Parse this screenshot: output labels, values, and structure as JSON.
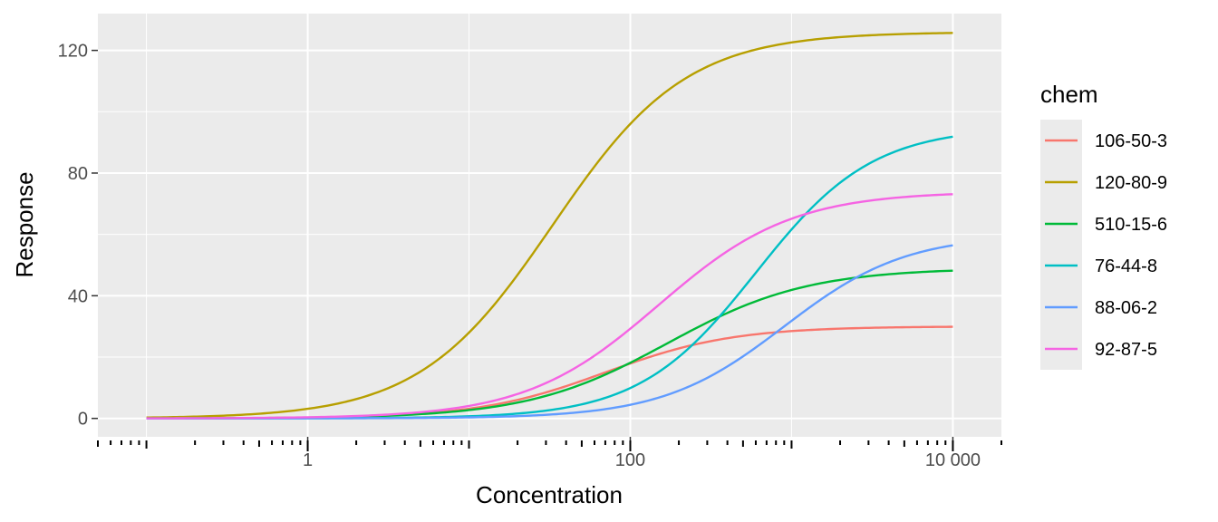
{
  "chart_data": {
    "type": "line",
    "xlabel": "Concentration",
    "ylabel": "Response",
    "x_scale": "log10",
    "xlim": [
      0.05,
      20000
    ],
    "ylim": [
      -6,
      132
    ],
    "x_ticks": [
      {
        "value": 1,
        "label": "1"
      },
      {
        "value": 100,
        "label": "100"
      },
      {
        "value": 10000,
        "label": "10 000"
      }
    ],
    "y_ticks": [
      {
        "value": 0,
        "label": "0"
      },
      {
        "value": 40,
        "label": "40"
      },
      {
        "value": 80,
        "label": "80"
      },
      {
        "value": 120,
        "label": "120"
      }
    ],
    "grid": true,
    "legend": {
      "title": "chem",
      "position": "right"
    },
    "series": [
      {
        "name": "106-50-3",
        "color": "#F8766D",
        "x_range": [
          0.1,
          10000
        ],
        "top": 30,
        "ac50": 70,
        "hill": 1.1
      },
      {
        "name": "120-80-9",
        "color": "#B79F00",
        "x_range": [
          0.1,
          10000
        ],
        "top": 126,
        "ac50": 33,
        "hill": 1.05
      },
      {
        "name": "510-15-6",
        "color": "#00BA38",
        "x_range": [
          0.1,
          10000
        ],
        "top": 49,
        "ac50": 170,
        "hill": 1.0
      },
      {
        "name": "76-44-8",
        "color": "#00BFC4",
        "x_range": [
          0.1,
          10000
        ],
        "top": 95,
        "ac50": 600,
        "hill": 1.2
      },
      {
        "name": "88-06-2",
        "color": "#619CFF",
        "x_range": [
          0.1,
          10000
        ],
        "top": 60,
        "ac50": 900,
        "hill": 1.15
      },
      {
        "name": "92-87-5",
        "color": "#F564E3",
        "x_range": [
          0.1,
          10000
        ],
        "top": 74,
        "ac50": 150,
        "hill": 1.05
      }
    ]
  }
}
